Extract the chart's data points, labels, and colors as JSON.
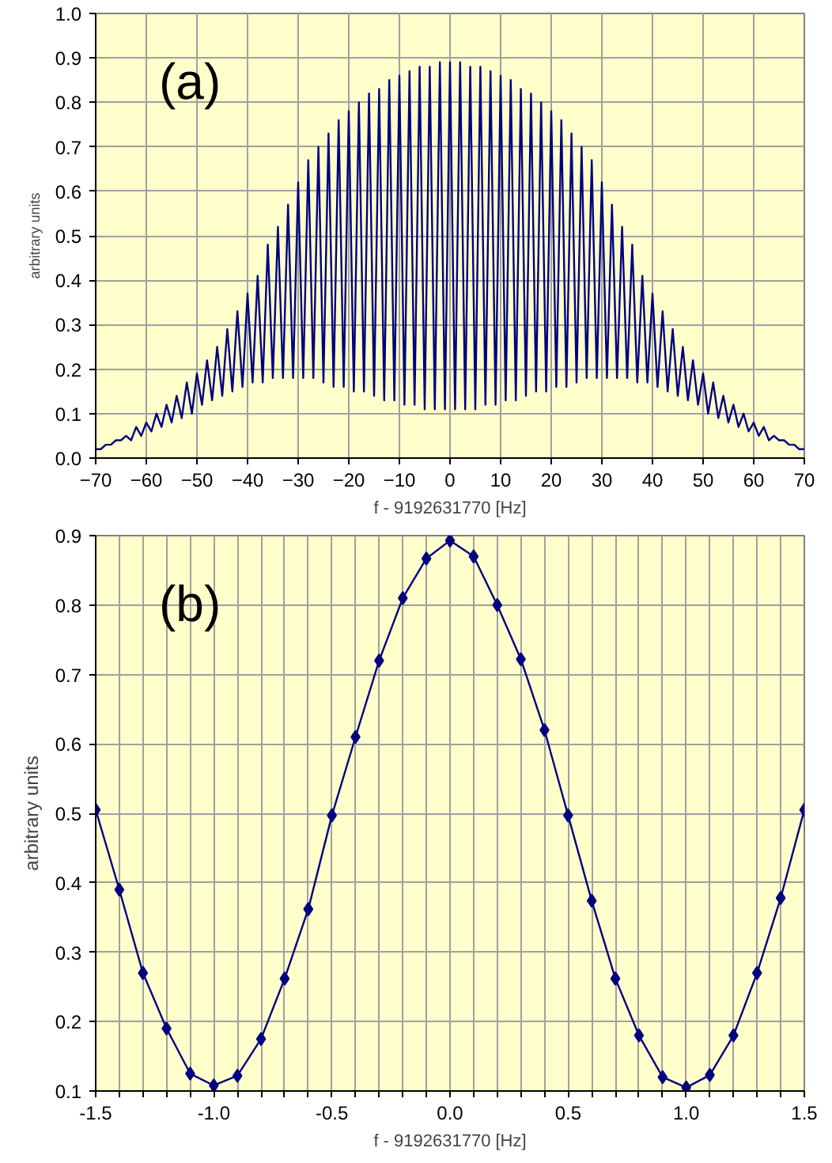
{
  "chart_data": [
    {
      "type": "line",
      "xlabel": "f - 9192631770 [Hz]",
      "ylabel": "arbitrary units",
      "annotations": [
        "(a)"
      ],
      "xlim": [
        -70,
        70
      ],
      "ylim": [
        0,
        1
      ],
      "xticks": [
        -70,
        -60,
        -50,
        -40,
        -30,
        -20,
        -10,
        0,
        10,
        20,
        30,
        40,
        50,
        60,
        70
      ],
      "yticks": [
        {
          "value": 0,
          "label": "0.0"
        },
        0.1,
        0.2,
        0.3,
        0.4,
        0.5,
        0.6,
        0.7,
        0.8,
        0.9,
        {
          "value": 1,
          "label": "1.0"
        }
      ],
      "grid": true,
      "marker": "none",
      "line_style": "solid",
      "x": [
        -70,
        -69,
        -68,
        -67,
        -66,
        -65,
        -64,
        -63,
        -62,
        -61,
        -60,
        -59,
        -58,
        -57,
        -56,
        -55,
        -54,
        -53,
        -52,
        -51,
        -50,
        -49,
        -48,
        -47,
        -46,
        -45,
        -44,
        -43,
        -42,
        -41,
        -40,
        -39,
        -38,
        -37,
        -36,
        -35,
        -34,
        -33,
        -32,
        -31,
        -30,
        -29,
        -28,
        -27,
        -26,
        -25,
        -24,
        -23,
        -22,
        -21,
        -20,
        -19,
        -18,
        -17,
        -16,
        -15,
        -14,
        -13,
        -12,
        -11,
        -10,
        -9,
        -8,
        -7,
        -6,
        -5,
        -4,
        -3,
        -2,
        -1,
        0,
        1,
        2,
        3,
        4,
        5,
        6,
        7,
        8,
        9,
        10,
        11,
        12,
        13,
        14,
        15,
        16,
        17,
        18,
        19,
        20,
        21,
        22,
        23,
        24,
        25,
        26,
        27,
        28,
        29,
        30,
        31,
        32,
        33,
        34,
        35,
        36,
        37,
        38,
        39,
        40,
        41,
        42,
        43,
        44,
        45,
        46,
        47,
        48,
        49,
        50,
        51,
        52,
        53,
        54,
        55,
        56,
        57,
        58,
        59,
        60,
        61,
        62,
        63,
        64,
        65,
        66,
        67,
        68,
        69,
        70
      ],
      "series": [
        {
          "color": "#000080",
          "values": [
            0.02,
            0.02,
            0.03,
            0.03,
            0.04,
            0.04,
            0.05,
            0.04,
            0.07,
            0.05,
            0.08,
            0.06,
            0.1,
            0.07,
            0.12,
            0.08,
            0.14,
            0.09,
            0.17,
            0.1,
            0.19,
            0.12,
            0.22,
            0.13,
            0.25,
            0.14,
            0.29,
            0.15,
            0.33,
            0.16,
            0.37,
            0.17,
            0.41,
            0.17,
            0.48,
            0.18,
            0.52,
            0.18,
            0.57,
            0.18,
            0.62,
            0.18,
            0.67,
            0.18,
            0.7,
            0.17,
            0.73,
            0.16,
            0.76,
            0.16,
            0.78,
            0.15,
            0.8,
            0.15,
            0.82,
            0.14,
            0.83,
            0.13,
            0.85,
            0.13,
            0.86,
            0.12,
            0.87,
            0.12,
            0.88,
            0.11,
            0.88,
            0.11,
            0.89,
            0.11,
            0.89,
            0.11,
            0.89,
            0.11,
            0.88,
            0.11,
            0.88,
            0.12,
            0.87,
            0.12,
            0.86,
            0.13,
            0.85,
            0.13,
            0.83,
            0.14,
            0.82,
            0.15,
            0.8,
            0.15,
            0.78,
            0.16,
            0.76,
            0.16,
            0.73,
            0.17,
            0.7,
            0.18,
            0.67,
            0.18,
            0.62,
            0.18,
            0.57,
            0.18,
            0.52,
            0.18,
            0.48,
            0.17,
            0.41,
            0.17,
            0.37,
            0.16,
            0.33,
            0.15,
            0.29,
            0.14,
            0.25,
            0.13,
            0.22,
            0.12,
            0.19,
            0.1,
            0.17,
            0.09,
            0.14,
            0.08,
            0.12,
            0.07,
            0.1,
            0.06,
            0.08,
            0.05,
            0.07,
            0.04,
            0.05,
            0.04,
            0.04,
            0.03,
            0.03,
            0.02,
            0.02
          ]
        }
      ]
    },
    {
      "type": "line",
      "xlabel": "f - 9192631770 [Hz]",
      "ylabel": "arbitrary units",
      "annotations": [
        "(b)"
      ],
      "xlim": [
        -1.5,
        1.5
      ],
      "ylim": [
        0.1,
        0.9
      ],
      "xticks": [
        {
          "value": -1.5,
          "label": "-1.5"
        },
        {
          "value": -1.4,
          "label": null
        },
        {
          "value": -1.3,
          "label": null
        },
        {
          "value": -1.2,
          "label": null
        },
        {
          "value": -1.1,
          "label": null
        },
        {
          "value": -1.0,
          "label": "-1.0"
        },
        {
          "value": -0.9,
          "label": null
        },
        {
          "value": -0.8,
          "label": null
        },
        {
          "value": -0.7,
          "label": null
        },
        {
          "value": -0.6,
          "label": null
        },
        {
          "value": -0.5,
          "label": "-0.5"
        },
        {
          "value": -0.4,
          "label": null
        },
        {
          "value": -0.3,
          "label": null
        },
        {
          "value": -0.2,
          "label": null
        },
        {
          "value": -0.1,
          "label": null
        },
        {
          "value": 0,
          "label": "0.0"
        },
        {
          "value": 0.1,
          "label": null
        },
        {
          "value": 0.2,
          "label": null
        },
        {
          "value": 0.3,
          "label": null
        },
        {
          "value": 0.4,
          "label": null
        },
        {
          "value": 0.5,
          "label": "0.5"
        },
        {
          "value": 0.6,
          "label": null
        },
        {
          "value": 0.7,
          "label": null
        },
        {
          "value": 0.8,
          "label": null
        },
        {
          "value": 0.9,
          "label": null
        },
        {
          "value": 1.0,
          "label": "1.0"
        },
        {
          "value": 1.1,
          "label": null
        },
        {
          "value": 1.2,
          "label": null
        },
        {
          "value": 1.3,
          "label": null
        },
        {
          "value": 1.4,
          "label": null
        },
        {
          "value": 1.5,
          "label": "1.5"
        }
      ],
      "yticks": [
        0.1,
        0.2,
        0.3,
        0.4,
        0.5,
        0.6,
        0.7,
        0.8,
        0.9
      ],
      "grid": true,
      "marker": "diamond",
      "line_style": "solid",
      "x": [
        -1.5,
        -1.4,
        -1.3,
        -1.2,
        -1.1,
        -1.0,
        -0.9,
        -0.8,
        -0.7,
        -0.6,
        -0.5,
        -0.4,
        -0.3,
        -0.2,
        -0.1,
        0,
        0.1,
        0.2,
        0.3,
        0.4,
        0.5,
        0.6,
        0.7,
        0.8,
        0.9,
        1.0,
        1.1,
        1.2,
        1.3,
        1.4,
        1.5
      ],
      "series": [
        {
          "color": "#000080",
          "values": [
            0.505,
            0.39,
            0.27,
            0.19,
            0.125,
            0.108,
            0.122,
            0.175,
            0.262,
            0.362,
            0.497,
            0.61,
            0.72,
            0.81,
            0.867,
            0.893,
            0.87,
            0.8,
            0.722,
            0.62,
            0.497,
            0.374,
            0.262,
            0.18,
            0.12,
            0.105,
            0.123,
            0.18,
            0.27,
            0.378,
            0.505
          ]
        }
      ]
    }
  ]
}
